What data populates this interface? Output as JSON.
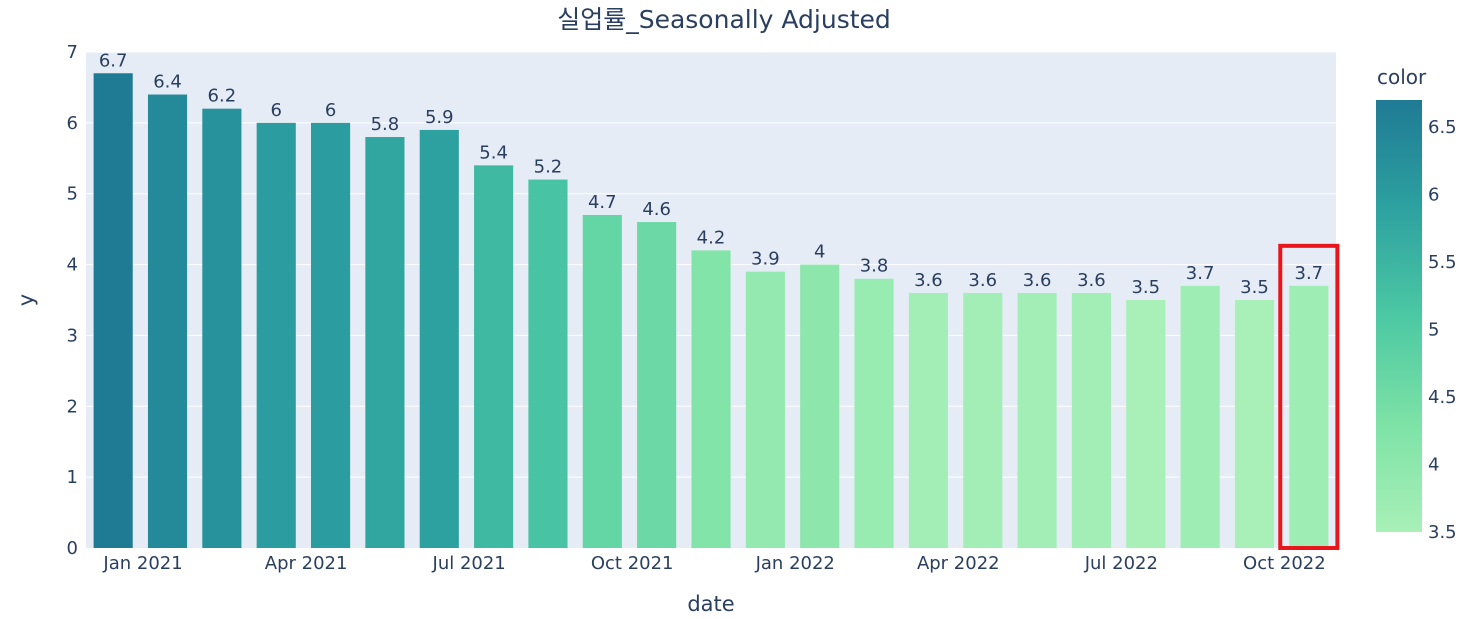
{
  "chart_data": {
    "type": "bar",
    "title": "실업률_Seasonally Adjusted",
    "xlabel": "date",
    "ylabel": "y",
    "categories": [
      "Dec 2020",
      "Jan 2021",
      "Feb 2021",
      "Mar 2021",
      "Apr 2021",
      "May 2021",
      "Jun 2021",
      "Jul 2021",
      "Aug 2021",
      "Sep 2021",
      "Oct 2021",
      "Nov 2021",
      "Dec 2021",
      "Jan 2022",
      "Feb 2022",
      "Mar 2022",
      "Apr 2022",
      "May 2022",
      "Jun 2022",
      "Jul 2022",
      "Aug 2022",
      "Sep 2022",
      "Oct 2022"
    ],
    "values": [
      6.7,
      6.4,
      6.2,
      6,
      6,
      5.8,
      5.9,
      5.4,
      5.2,
      4.7,
      4.6,
      4.2,
      3.9,
      4,
      3.8,
      3.6,
      3.6,
      3.6,
      3.6,
      3.5,
      3.7,
      3.5,
      3.7
    ],
    "value_labels": [
      "6.7",
      "6.4",
      "6.2",
      "6",
      "6",
      "5.8",
      "5.9",
      "5.4",
      "5.2",
      "4.7",
      "4.6",
      "4.2",
      "3.9",
      "4",
      "3.8",
      "3.6",
      "3.6",
      "3.6",
      "3.6",
      "3.5",
      "3.7",
      "3.5",
      "3.7"
    ],
    "x_tick_labels": [
      {
        "label": "Jan 2021",
        "index": 1
      },
      {
        "label": "Apr 2021",
        "index": 4
      },
      {
        "label": "Jul 2021",
        "index": 7
      },
      {
        "label": "Oct 2021",
        "index": 10
      },
      {
        "label": "Jan 2022",
        "index": 13
      },
      {
        "label": "Apr 2022",
        "index": 16
      },
      {
        "label": "Jul 2022",
        "index": 19
      },
      {
        "label": "Oct 2022",
        "index": 22
      }
    ],
    "ylim": [
      0,
      7
    ],
    "y_ticks": [
      0,
      1,
      2,
      3,
      4,
      5,
      6,
      7
    ],
    "grid": true,
    "colorbar": {
      "title": "color",
      "range": [
        3.5,
        6.7
      ],
      "ticks": [
        3.5,
        4,
        4.5,
        5,
        5.5,
        6,
        6.5
      ],
      "tick_labels": [
        "3.5",
        "4",
        "4.5",
        "5",
        "5.5",
        "6",
        "6.5"
      ],
      "colorscale": [
        "#a8f0b8",
        "#7de2a6",
        "#4cc8a3",
        "#2da1a0",
        "#1f7a94"
      ]
    },
    "highlight": {
      "index": 22,
      "color": "#e8161b"
    },
    "colors": {
      "plot_bg": "#e5ecf6",
      "grid": "#ffffff",
      "text": "#2a3f5f"
    }
  }
}
